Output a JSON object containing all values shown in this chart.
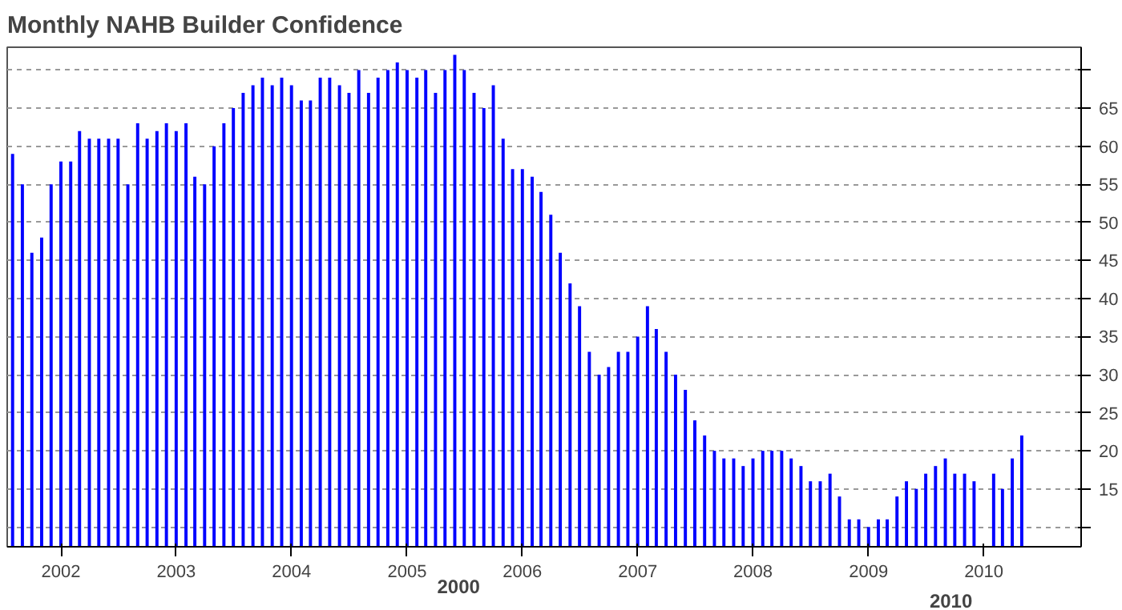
{
  "chart_data": {
    "type": "bar",
    "title": "Monthly NAHB Builder Confidence",
    "x": [
      "2001-08",
      "2001-09",
      "2001-10",
      "2001-11",
      "2001-12",
      "2002-01",
      "2002-02",
      "2002-03",
      "2002-04",
      "2002-05",
      "2002-06",
      "2002-07",
      "2002-08",
      "2002-09",
      "2002-10",
      "2002-11",
      "2002-12",
      "2003-01",
      "2003-02",
      "2003-03",
      "2003-04",
      "2003-05",
      "2003-06",
      "2003-07",
      "2003-08",
      "2003-09",
      "2003-10",
      "2003-11",
      "2003-12",
      "2004-01",
      "2004-02",
      "2004-03",
      "2004-04",
      "2004-05",
      "2004-06",
      "2004-07",
      "2004-08",
      "2004-09",
      "2004-10",
      "2004-11",
      "2004-12",
      "2005-01",
      "2005-02",
      "2005-03",
      "2005-04",
      "2005-05",
      "2005-06",
      "2005-07",
      "2005-08",
      "2005-09",
      "2005-10",
      "2005-11",
      "2005-12",
      "2006-01",
      "2006-02",
      "2006-03",
      "2006-04",
      "2006-05",
      "2006-06",
      "2006-07",
      "2006-08",
      "2006-09",
      "2006-10",
      "2006-11",
      "2006-12",
      "2007-01",
      "2007-02",
      "2007-03",
      "2007-04",
      "2007-05",
      "2007-06",
      "2007-07",
      "2007-08",
      "2007-09",
      "2007-10",
      "2007-11",
      "2007-12",
      "2008-01",
      "2008-02",
      "2008-03",
      "2008-04",
      "2008-05",
      "2008-06",
      "2008-07",
      "2008-08",
      "2008-09",
      "2008-10",
      "2008-11",
      "2008-12",
      "2009-01",
      "2009-02",
      "2009-03",
      "2009-04",
      "2009-05",
      "2009-06",
      "2009-07",
      "2009-08",
      "2009-09",
      "2009-10",
      "2009-11",
      "2009-12",
      "2010-01",
      "2010-02",
      "2010-03",
      "2010-04",
      "2010-05"
    ],
    "values": [
      59,
      55,
      46,
      48,
      55,
      58,
      58,
      62,
      61,
      61,
      61,
      61,
      55,
      63,
      61,
      62,
      63,
      62,
      63,
      56,
      55,
      60,
      63,
      65,
      67,
      68,
      69,
      68,
      69,
      68,
      66,
      66,
      69,
      69,
      68,
      67,
      70,
      67,
      69,
      70,
      71,
      70,
      69,
      70,
      67,
      70,
      72,
      70,
      67,
      65,
      68,
      61,
      57,
      57,
      56,
      54,
      51,
      46,
      42,
      39,
      33,
      30,
      31,
      33,
      33,
      35,
      39,
      36,
      33,
      30,
      28,
      24,
      22,
      20,
      19,
      19,
      18,
      19,
      20,
      20,
      20,
      19,
      18,
      16,
      16,
      17,
      14,
      11,
      11,
      10,
      11,
      11,
      14,
      16,
      15,
      17,
      18,
      19,
      17,
      17,
      16,
      null,
      17,
      15,
      19,
      22
    ],
    "color": "#0000ff",
    "xlim": [
      "2001-07-15",
      "2010-11-05"
    ],
    "xticks": [
      "2002",
      "2003",
      "2004",
      "2005",
      "2006",
      "2007",
      "2008",
      "2009",
      "2010"
    ],
    "ylim": [
      7.4,
      73
    ],
    "yticks": [
      {
        "value": 10,
        "label": null
      },
      15,
      20,
      25,
      30,
      35,
      40,
      45,
      50,
      55,
      60,
      65,
      {
        "value": 70,
        "label": null
      }
    ],
    "grid": true,
    "annotations": [
      "2000",
      "2010"
    ]
  }
}
